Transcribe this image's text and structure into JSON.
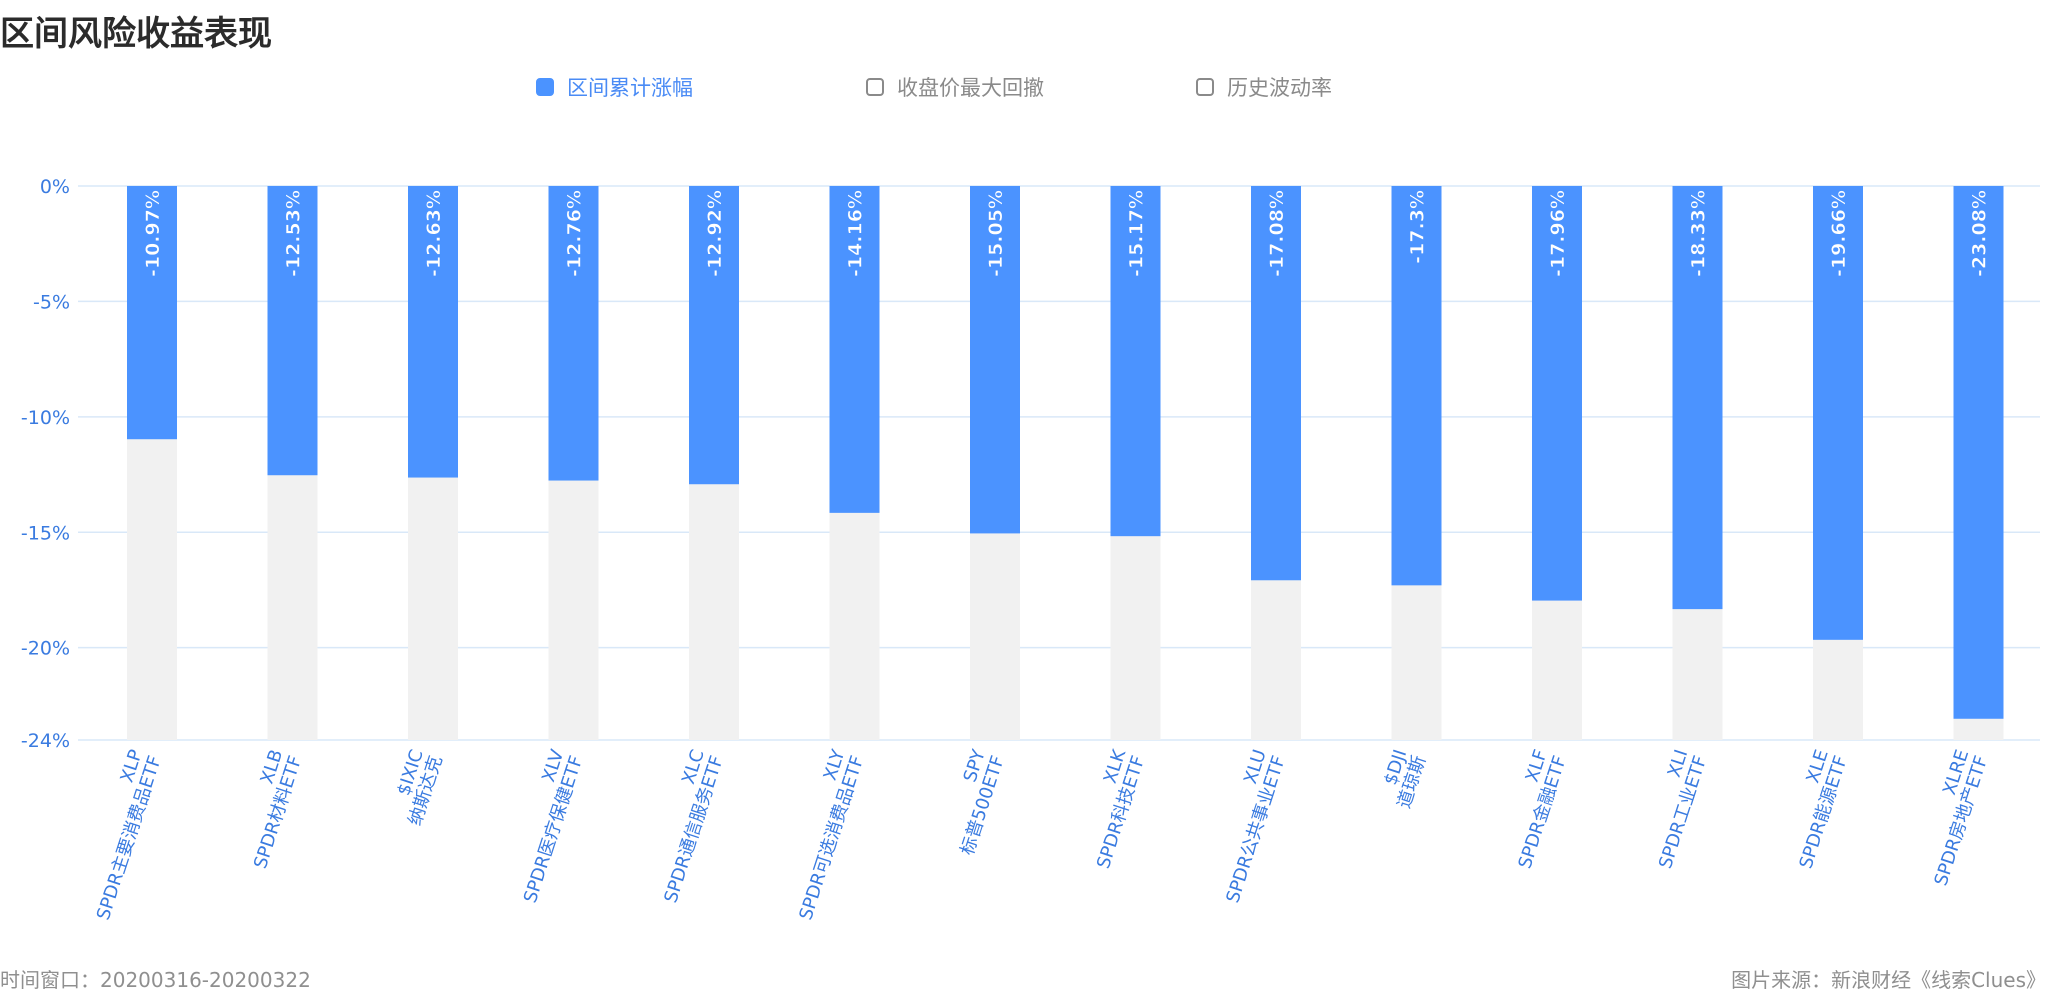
{
  "title": "区间风险收益表现",
  "legend": [
    {
      "label": "区间累计涨幅",
      "active": true
    },
    {
      "label": "收盘价最大回撤",
      "active": false
    },
    {
      "label": "历史波动率",
      "active": false
    }
  ],
  "footer": {
    "left": "时间窗口：20200316-20200322",
    "right": "图片来源：新浪财经《线索Clues》"
  },
  "colors": {
    "bar": "#4b93ff",
    "background_bar": "#f1f1f1",
    "grid": "#d9e8f8",
    "axis_text": "#3a7be0"
  },
  "chart_data": {
    "type": "bar",
    "title": "",
    "xlabel": "",
    "ylabel": "",
    "ylim": [
      -24,
      0
    ],
    "yticks": [
      0,
      -5,
      -10,
      -15,
      -20,
      -24
    ],
    "ytick_labels": [
      "0%",
      "-5%",
      "-10%",
      "-15%",
      "-20%",
      "-24%"
    ],
    "grid": true,
    "legend_position": "top-center",
    "categories": [
      {
        "ticker": "XLP",
        "name": "SPDR主要消费品ETF"
      },
      {
        "ticker": "XLB",
        "name": "SPDR材料ETF"
      },
      {
        "ticker": "$IXIC",
        "name": "纳斯达克"
      },
      {
        "ticker": "XLV",
        "name": "SPDR医疗保健ETF"
      },
      {
        "ticker": "XLC",
        "name": "SPDR通信服务ETF"
      },
      {
        "ticker": "XLY",
        "name": "SPDR可选消费品ETF"
      },
      {
        "ticker": "SPY",
        "name": "标普500ETF"
      },
      {
        "ticker": "XLK",
        "name": "SPDR科技ETF"
      },
      {
        "ticker": "XLU",
        "name": "SPDR公共事业ETF"
      },
      {
        "ticker": "$DJI",
        "name": "道琼斯"
      },
      {
        "ticker": "XLF",
        "name": "SPDR金融ETF"
      },
      {
        "ticker": "XLI",
        "name": "SPDR工业ETF"
      },
      {
        "ticker": "XLE",
        "name": "SPDR能源ETF"
      },
      {
        "ticker": "XLRE",
        "name": "SPDR房地产ETF"
      }
    ],
    "series": [
      {
        "name": "区间累计涨幅",
        "values": [
          -10.97,
          -12.53,
          -12.63,
          -12.76,
          -12.92,
          -14.16,
          -15.05,
          -15.17,
          -17.08,
          -17.3,
          -17.96,
          -18.33,
          -19.66,
          -23.08
        ],
        "labels": [
          "-10.97%",
          "-12.53%",
          "-12.63%",
          "-12.76%",
          "-12.92%",
          "-14.16%",
          "-15.05%",
          "-15.17%",
          "-17.08%",
          "-17.3%",
          "-17.96%",
          "-18.33%",
          "-19.66%",
          "-23.08%"
        ]
      }
    ]
  }
}
